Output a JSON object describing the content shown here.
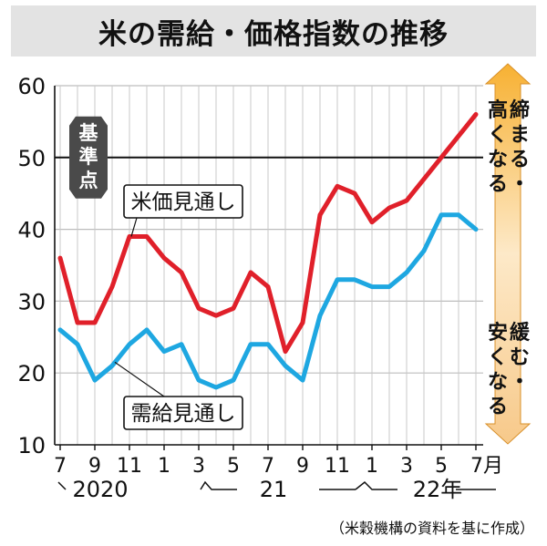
{
  "title": "米の需給・価格指数の推移",
  "source": "（米穀機構の資料を基に作成）",
  "colors": {
    "price": "#e0202a",
    "supply": "#1ea7e1",
    "title_bg": "#e3e3e3",
    "arrow_top": "#f7b133",
    "arrow_bottom": "#f7c98a",
    "baseline_badge": "#4a4a4a"
  },
  "chart_data": {
    "type": "line",
    "title": "米の需給・価格指数の推移",
    "x": [
      "2020-07",
      "2020-08",
      "2020-09",
      "2020-10",
      "2020-11",
      "2020-12",
      "2021-01",
      "2021-02",
      "2021-03",
      "2021-04",
      "2021-05",
      "2021-06",
      "2021-07",
      "2021-08",
      "2021-09",
      "2021-10",
      "2021-11",
      "2021-12",
      "2022-01",
      "2022-02",
      "2022-03",
      "2022-04",
      "2022-05",
      "2022-06",
      "2022-07"
    ],
    "x_tick_labels": [
      "7",
      "9",
      "11",
      "1",
      "3",
      "5",
      "7",
      "9",
      "11",
      "1",
      "3",
      "5",
      "7月"
    ],
    "year_labels": [
      "2020",
      "21",
      "22年"
    ],
    "ylim": [
      10,
      60
    ],
    "y_ticks": [
      "10",
      "20",
      "30",
      "40",
      "50",
      "60"
    ],
    "grid": true,
    "baseline": {
      "value": 50,
      "label": "基準点"
    },
    "series": [
      {
        "name": "米価見通し",
        "values": [
          36,
          27,
          27,
          32,
          39,
          39,
          36,
          34,
          29,
          28,
          29,
          34,
          32,
          23,
          27,
          42,
          46,
          45,
          41,
          43,
          44,
          47,
          50,
          53,
          56
        ]
      },
      {
        "name": "需給見通し",
        "values": [
          26,
          24,
          19,
          21,
          24,
          26,
          23,
          24,
          19,
          18,
          19,
          24,
          24,
          21,
          19,
          28,
          33,
          33,
          32,
          32,
          34,
          37,
          42,
          42,
          40
        ]
      }
    ],
    "annotations": {
      "top": "締まる・高くなる",
      "bottom": "緩む・安くなる"
    }
  }
}
